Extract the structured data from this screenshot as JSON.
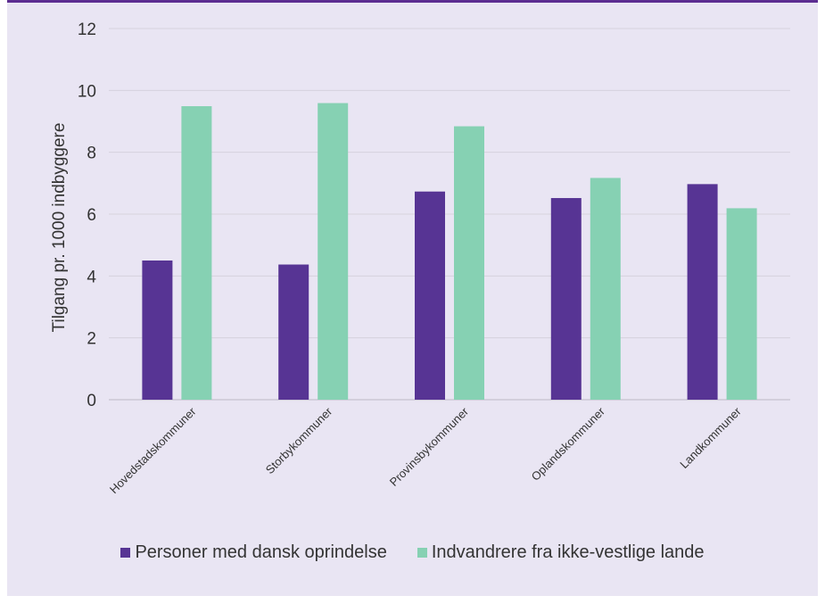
{
  "chart_data": {
    "type": "bar",
    "title": "",
    "xlabel": "",
    "ylabel": "Tilgang pr. 1000 indbyggere",
    "ylim": [
      0,
      12
    ],
    "yticks": [
      0,
      2,
      4,
      6,
      8,
      10,
      12
    ],
    "grid": true,
    "legend_position": "bottom",
    "categories": [
      "Hovedstadskommuner",
      "Storbykommuner",
      "Provinsbykommuner",
      "Oplandskommuner",
      "Landkommuner"
    ],
    "series": [
      {
        "name": "Personer med dansk oprindelse",
        "color": "#573494",
        "values": [
          4.5,
          4.37,
          6.73,
          6.52,
          6.97
        ]
      },
      {
        "name": "Indvandrere fra ikke-vestlige lande",
        "color": "#86d1b3",
        "values": [
          9.49,
          9.59,
          8.84,
          7.17,
          6.19
        ]
      }
    ]
  }
}
